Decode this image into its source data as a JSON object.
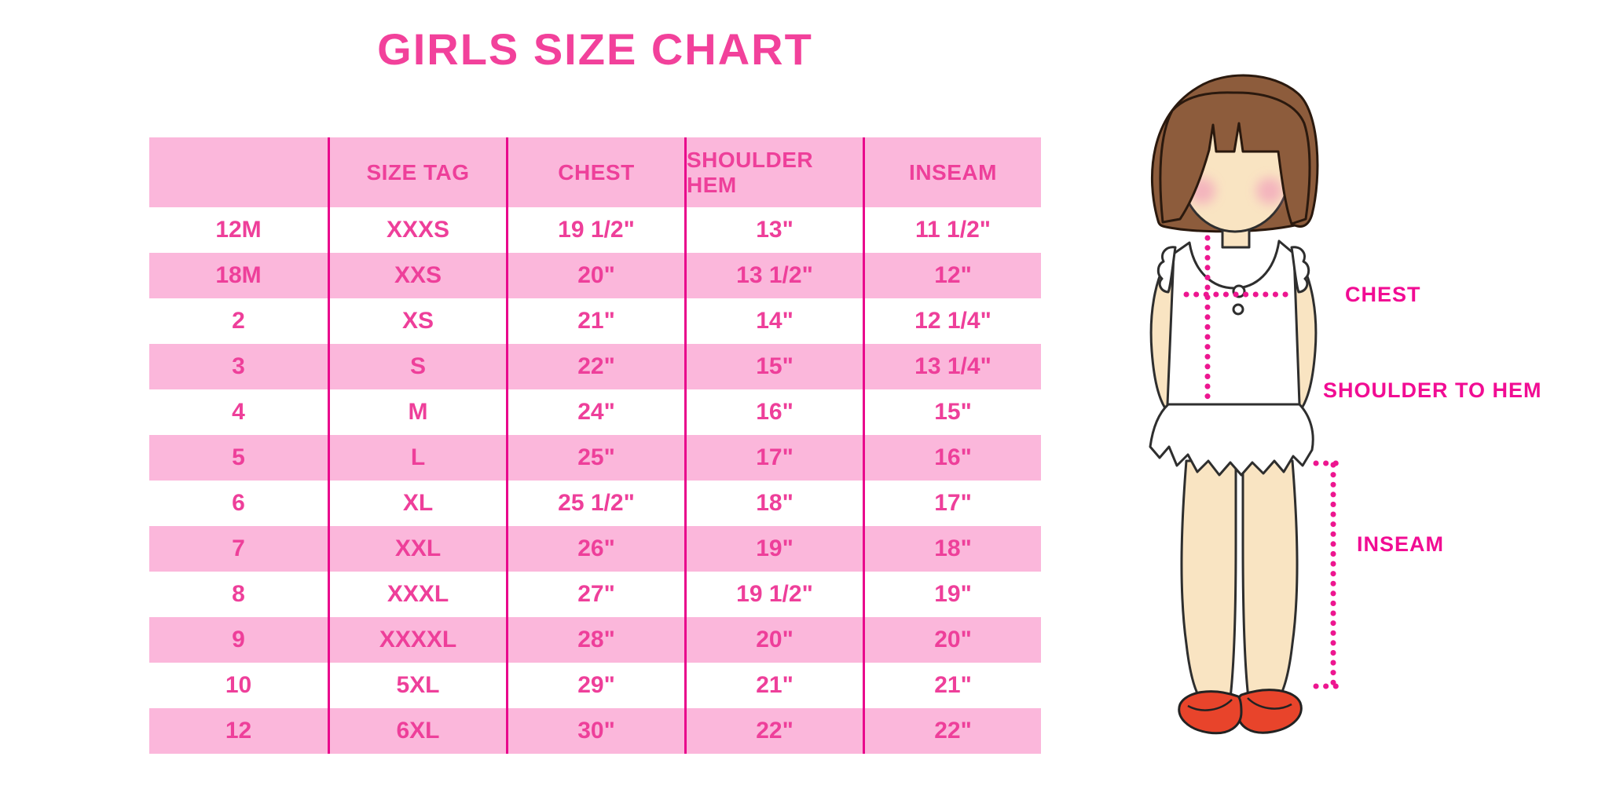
{
  "chart_data": {
    "type": "table",
    "title": "GIRLS SIZE CHART",
    "columns": [
      "",
      "SIZE TAG",
      "CHEST",
      "SHOULDER HEM",
      "INSEAM"
    ],
    "rows": [
      [
        "12M",
        "XXXS",
        "19 1/2\"",
        "13\"",
        "11 1/2\""
      ],
      [
        "18M",
        "XXS",
        "20\"",
        "13 1/2\"",
        "12\""
      ],
      [
        "2",
        "XS",
        "21\"",
        "14\"",
        "12 1/4\""
      ],
      [
        "3",
        "S",
        "22\"",
        "15\"",
        "13 1/4\""
      ],
      [
        "4",
        "M",
        "24\"",
        "16\"",
        "15\""
      ],
      [
        "5",
        "L",
        "25\"",
        "17\"",
        "16\""
      ],
      [
        "6",
        "XL",
        "25 1/2\"",
        "18\"",
        "17\""
      ],
      [
        "7",
        "XXL",
        "26\"",
        "19\"",
        "18\""
      ],
      [
        "8",
        "XXXL",
        "27\"",
        "19 1/2\"",
        "19\""
      ],
      [
        "9",
        "XXXXL",
        "28\"",
        "20\"",
        "20\""
      ],
      [
        "10",
        "5XL",
        "29\"",
        "21\"",
        "21\""
      ],
      [
        "12",
        "6XL",
        "30\"",
        "22\"",
        "22\""
      ]
    ],
    "layout": {
      "striped_rows": true,
      "stripe_order": "white-first-after-header",
      "column_dividers": "vertical-magenta-lines",
      "grid": "off"
    }
  },
  "diagram": {
    "labels": {
      "chest": "CHEST",
      "shoulder_to_hem": "SHOULDER TO HEM",
      "inseam": "INSEAM"
    }
  },
  "colors": {
    "title_pink": "#F2419B",
    "row_pink": "#FBB7DB",
    "text_pink": "#EE3F9A",
    "divider_magenta": "#E9068C",
    "label_magenta": "#F10C93",
    "dotted_line_magenta": "#ED1690",
    "hair_brown": "#8D5C3C",
    "skin_tone": "#F9E4C2",
    "shoe_red": "#E8442B",
    "cheek_blush": "#F2A0BB"
  }
}
